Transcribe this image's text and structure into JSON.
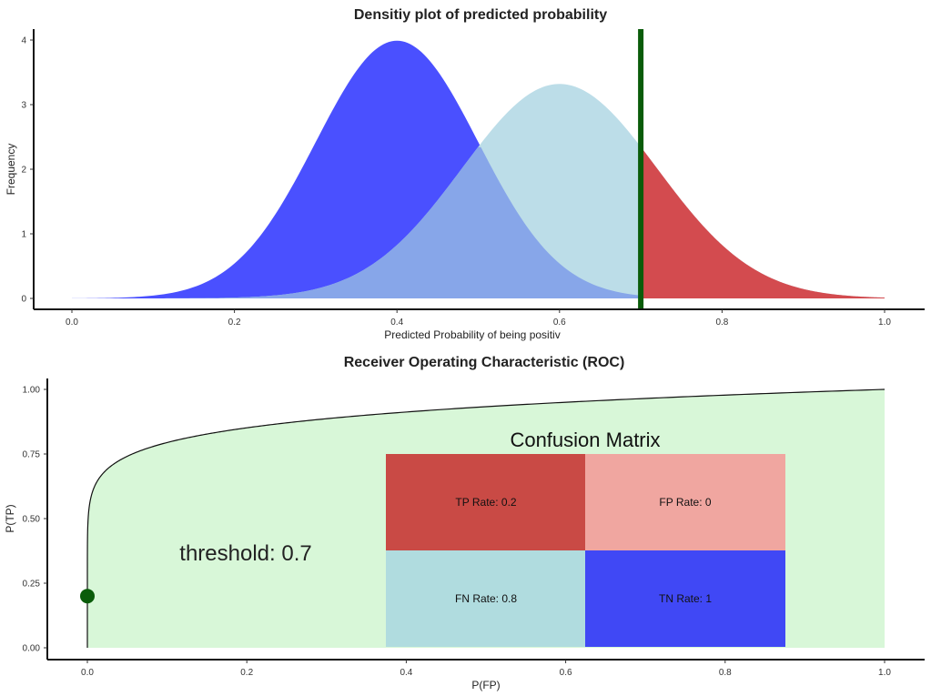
{
  "chart_data": [
    {
      "type": "area",
      "title": "Densitiy plot of predicted probability",
      "xlabel": "Predicted Probability of being positiv",
      "ylabel": "Frequency",
      "xlim": [
        0,
        1
      ],
      "ylim": [
        0,
        4
      ],
      "xticks": [
        "0.0",
        "0.2",
        "0.4",
        "0.6",
        "0.8",
        "1.0"
      ],
      "yticks": [
        "0",
        "1",
        "2",
        "3",
        "4"
      ],
      "grid": false,
      "threshold": 0.7,
      "series": [
        {
          "kind": "normal-density",
          "mean": 0.4,
          "sd": 0.1,
          "peak": 3.99,
          "color": "#4a50ff"
        },
        {
          "kind": "normal-density",
          "mean": 0.6,
          "sd": 0.12,
          "peak": 3.32,
          "color": "#add8e6"
        }
      ],
      "colors": {
        "negative": "#4a50ff",
        "positive": "#bcdde8",
        "overlap": "#87a6e9",
        "above_threshold": "#d34b4f",
        "threshold_line": "#0a5c0a"
      }
    },
    {
      "type": "line",
      "title": "Receiver Operating Characteristic (ROC)",
      "xlabel": "P(FP)",
      "ylabel": "P(TP)",
      "xlim": [
        0,
        1
      ],
      "ylim": [
        0,
        1
      ],
      "xticks": [
        "0.0",
        "0.2",
        "0.4",
        "0.6",
        "0.8",
        "1.0"
      ],
      "yticks": [
        "0.00",
        "0.25",
        "0.50",
        "0.75",
        "1.00"
      ],
      "grid": false,
      "curve_fill": "#d8f7d8",
      "point": {
        "x": 0.0,
        "y": 0.2,
        "color": "#0a5c0a"
      },
      "threshold_label": "threshold: 0.7",
      "confusion_matrix": {
        "title": "Confusion Matrix",
        "cells": [
          {
            "label": "TP Rate: 0.2",
            "color": "#c94a45"
          },
          {
            "label": "FP Rate: 0",
            "color": "#f0a6a0"
          },
          {
            "label": "FN Rate: 0.8",
            "color": "#b0dcdf"
          },
          {
            "label": "TN Rate: 1",
            "color": "#4048f5"
          }
        ]
      }
    }
  ]
}
